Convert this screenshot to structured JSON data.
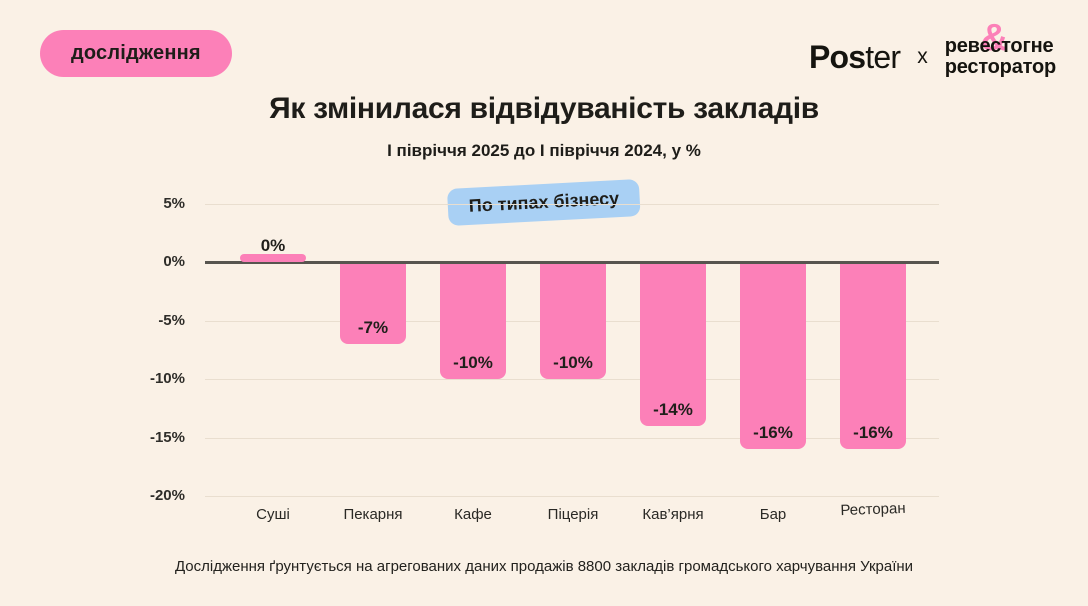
{
  "badge": {
    "label": "дослідження"
  },
  "logo": {
    "poster_bold": "Pos",
    "poster_light": "ter",
    "separator": "x",
    "brand_word1": "реве",
    "brand_amp": "&",
    "brand_word2": "стогне",
    "brand_line2": "ресторатор"
  },
  "title": "Як змінилася відвідуваність закладів",
  "subtitle": "І півріччя 2025 до І півріччя 2024, у %",
  "chip": {
    "label": "По типах бізнесу"
  },
  "chart_data": {
    "type": "bar",
    "title": "Як змінилася відвідуваність закладів",
    "subtitle": "І півріччя 2025 до І півріччя 2024, у %",
    "group_label": "По типах бізнесу",
    "categories": [
      "Суші",
      "Пекарня",
      "Кафе",
      "Піцерія",
      "Кав’ярня",
      "Бар",
      "Ресторан"
    ],
    "values": [
      0,
      -7,
      -10,
      -10,
      -14,
      -16,
      -16
    ],
    "bar_labels": [
      "0%",
      "-7%",
      "-10%",
      "-10%",
      "-14%",
      "-16%",
      "-16%"
    ],
    "unit": "%",
    "y_ticks": [
      {
        "value": 5,
        "label": "5%"
      },
      {
        "value": 0,
        "label": "0%"
      },
      {
        "value": -5,
        "label": "-5%"
      },
      {
        "value": -10,
        "label": "-10%"
      },
      {
        "value": -15,
        "label": "-15%"
      },
      {
        "value": -20,
        "label": "-20%"
      }
    ],
    "ylim": [
      -20,
      5
    ],
    "grid": true,
    "legend": false,
    "bar_color": "#FC80B8"
  },
  "footer": "Дослідження ґрунтується на агрегованих даних продажів 8800 закладів громадського харчування України",
  "colors": {
    "background": "#FAF1E6",
    "accent_pink": "#FC80B8",
    "accent_blue": "#A9D0F4",
    "text": "#1E1D19",
    "axis_line": "#57554F"
  }
}
